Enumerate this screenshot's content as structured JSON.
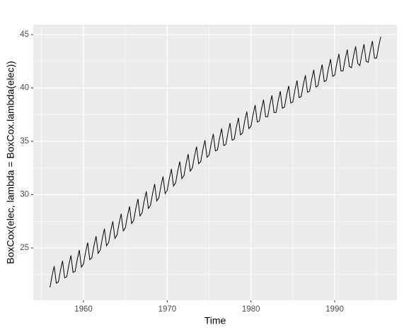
{
  "chart_data": {
    "type": "line",
    "xlabel": "Time",
    "ylabel": "BoxCox(elec, lambda = BoxCox.lambda(elec))",
    "xlim": [
      1954.0,
      1997.43
    ],
    "ylim": [
      20.1,
      45.93
    ],
    "xticks": [
      1960,
      1970,
      1980,
      1990
    ],
    "yticks": [
      25,
      30,
      35,
      40,
      45
    ],
    "grid": true,
    "x": [
      1956,
      1956.25,
      1956.5,
      1956.75,
      1957,
      1957.25,
      1957.5,
      1957.75,
      1958,
      1958.25,
      1958.5,
      1958.75,
      1959,
      1959.25,
      1959.5,
      1959.75,
      1960,
      1960.25,
      1960.5,
      1960.75,
      1961,
      1961.25,
      1961.5,
      1961.75,
      1962,
      1962.25,
      1962.5,
      1962.75,
      1963,
      1963.25,
      1963.5,
      1963.75,
      1964,
      1964.25,
      1964.5,
      1964.75,
      1965,
      1965.25,
      1965.5,
      1965.75,
      1966,
      1966.25,
      1966.5,
      1966.75,
      1967,
      1967.25,
      1967.5,
      1967.75,
      1968,
      1968.25,
      1968.5,
      1968.75,
      1969,
      1969.25,
      1969.5,
      1969.75,
      1970,
      1970.25,
      1970.5,
      1970.75,
      1971,
      1971.25,
      1971.5,
      1971.75,
      1972,
      1972.25,
      1972.5,
      1972.75,
      1973,
      1973.25,
      1973.5,
      1973.75,
      1974,
      1974.25,
      1974.5,
      1974.75,
      1975,
      1975.25,
      1975.5,
      1975.75,
      1976,
      1976.25,
      1976.5,
      1976.75,
      1977,
      1977.25,
      1977.5,
      1977.75,
      1978,
      1978.25,
      1978.5,
      1978.75,
      1979,
      1979.25,
      1979.5,
      1979.75,
      1980,
      1980.25,
      1980.5,
      1980.75,
      1981,
      1981.25,
      1981.5,
      1981.75,
      1982,
      1982.25,
      1982.5,
      1982.75,
      1983,
      1983.25,
      1983.5,
      1983.75,
      1984,
      1984.25,
      1984.5,
      1984.75,
      1985,
      1985.25,
      1985.5,
      1985.75,
      1986,
      1986.25,
      1986.5,
      1986.75,
      1987,
      1987.25,
      1987.5,
      1987.75,
      1988,
      1988.25,
      1988.5,
      1988.75,
      1989,
      1989.25,
      1989.5,
      1989.75,
      1990,
      1990.25,
      1990.5,
      1990.75,
      1991,
      1991.25,
      1991.5,
      1991.75,
      1992,
      1992.25,
      1992.5,
      1992.75,
      1993,
      1993.25,
      1993.5,
      1993.75,
      1994,
      1994.25,
      1994.5,
      1994.75,
      1995,
      1995.25,
      1995.5
    ],
    "series": [
      {
        "color": "#000000",
        "values": [
          21.3,
          22.4,
          23.3,
          21.7,
          21.8,
          22.9,
          23.8,
          22.2,
          22.3,
          23.4,
          24.3,
          22.7,
          22.8,
          23.9,
          24.8,
          23.2,
          23.5,
          24.6,
          25.5,
          23.9,
          24.1,
          25.2,
          26.1,
          24.5,
          24.8,
          25.9,
          26.8,
          25.2,
          25.5,
          26.6,
          27.5,
          25.9,
          26.2,
          27.3,
          28.2,
          26.6,
          26.9,
          28.0,
          28.9,
          27.3,
          27.6,
          28.7,
          29.6,
          28.0,
          28.3,
          29.4,
          30.3,
          28.7,
          29.0,
          30.1,
          31.0,
          29.4,
          29.7,
          30.8,
          31.7,
          30.1,
          30.4,
          31.5,
          32.4,
          30.8,
          31.1,
          32.2,
          33.1,
          31.5,
          31.8,
          32.9,
          33.8,
          32.2,
          32.5,
          33.6,
          34.5,
          32.9,
          33.1,
          34.2,
          35.1,
          33.5,
          33.7,
          34.8,
          35.7,
          34.1,
          34.2,
          35.3,
          36.2,
          34.6,
          34.7,
          35.8,
          36.7,
          35.1,
          35.2,
          36.3,
          37.2,
          35.6,
          35.8,
          36.9,
          37.8,
          36.2,
          36.4,
          37.5,
          38.4,
          36.8,
          36.9,
          38.0,
          38.9,
          37.3,
          37.3,
          38.4,
          39.3,
          37.7,
          37.7,
          38.8,
          39.7,
          38.1,
          38.2,
          39.3,
          40.2,
          38.6,
          38.7,
          39.8,
          40.7,
          39.1,
          39.2,
          40.3,
          41.2,
          39.6,
          39.7,
          40.8,
          41.7,
          40.1,
          40.2,
          41.3,
          42.2,
          40.6,
          40.7,
          41.8,
          42.7,
          41.1,
          41.2,
          42.3,
          43.2,
          41.6,
          41.6,
          42.7,
          43.6,
          42.0,
          41.9,
          43.0,
          43.9,
          42.3,
          42.1,
          43.2,
          44.1,
          42.5,
          42.4,
          43.5,
          44.4,
          42.8,
          42.8,
          43.9,
          44.8
        ]
      }
    ]
  }
}
